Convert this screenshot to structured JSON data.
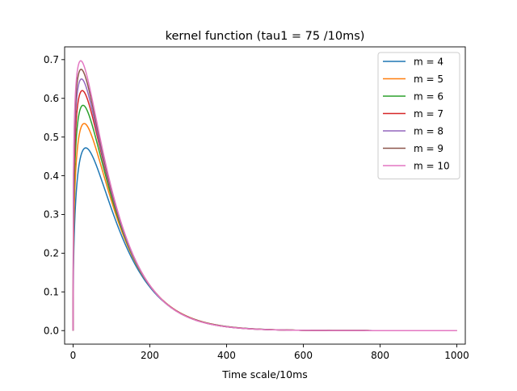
{
  "chart_data": {
    "type": "line",
    "title": "kernel function (tau1 = 75 /10ms)",
    "xlabel": "Time scale/10ms",
    "ylabel": "",
    "xlim": [
      -22,
      1022
    ],
    "ylim": [
      -0.035,
      0.733
    ],
    "xticks": [
      0,
      200,
      400,
      600,
      800,
      1000
    ],
    "xtick_labels": [
      "0",
      "200",
      "400",
      "600",
      "800",
      "1000"
    ],
    "yticks": [
      0.0,
      0.1,
      0.2,
      0.3,
      0.4,
      0.5,
      0.6,
      0.7
    ],
    "ytick_labels": [
      "0.0",
      "0.1",
      "0.2",
      "0.3",
      "0.4",
      "0.5",
      "0.6",
      "0.7"
    ],
    "grid": false,
    "legend_position": "upper right",
    "series": [
      {
        "name": "m = 4",
        "color": "#1f77b4",
        "m": 4,
        "peak_x": 33,
        "peak_y": 0.472
      },
      {
        "name": "m = 5",
        "color": "#ff7f0e",
        "m": 5,
        "peak_x": 29,
        "peak_y": 0.535
      },
      {
        "name": "m = 6",
        "color": "#2ca02c",
        "m": 6,
        "peak_x": 26,
        "peak_y": 0.582
      },
      {
        "name": "m = 7",
        "color": "#d62728",
        "m": 7,
        "peak_x": 24,
        "peak_y": 0.62
      },
      {
        "name": "m = 8",
        "color": "#9467bd",
        "m": 8,
        "peak_x": 22,
        "peak_y": 0.65
      },
      {
        "name": "m = 9",
        "color": "#8c564b",
        "m": 9,
        "peak_x": 21,
        "peak_y": 0.675
      },
      {
        "name": "m = 10",
        "color": "#e377c2",
        "m": 10,
        "peak_x": 20,
        "peak_y": 0.697
      }
    ]
  }
}
